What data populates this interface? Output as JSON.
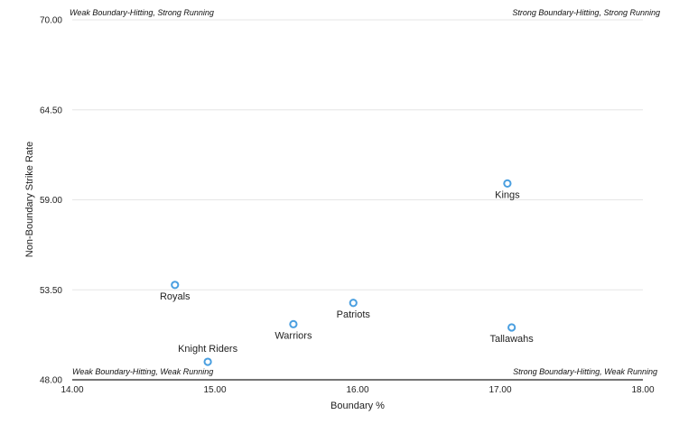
{
  "chart_data": {
    "type": "scatter",
    "title": "",
    "xlabel": "Boundary %",
    "ylabel": "Non-Boundary Strike Rate",
    "xlim": [
      14.0,
      18.0
    ],
    "ylim": [
      48.0,
      70.0
    ],
    "x_ticks": [
      "14.00",
      "15.00",
      "16.00",
      "17.00",
      "18.00"
    ],
    "y_ticks": [
      "48.00",
      "53.50",
      "59.00",
      "64.50",
      "70.00"
    ],
    "grid": true,
    "marker_color": "#4a9fe0",
    "quadrant_labels": {
      "top_left": "Weak Boundary-Hitting, Strong Running",
      "top_right": "Strong Boundary-Hitting, Strong Running",
      "bottom_left": "Weak Boundary-Hitting, Weak Running",
      "bottom_right": "Strong Boundary-Hitting, Weak Running"
    },
    "points": [
      {
        "label": "Kings",
        "x": 17.05,
        "y": 60.0,
        "label_position": "below"
      },
      {
        "label": "Royals",
        "x": 14.72,
        "y": 53.8,
        "label_position": "below"
      },
      {
        "label": "Patriots",
        "x": 15.97,
        "y": 52.7,
        "label_position": "below"
      },
      {
        "label": "Warriors",
        "x": 15.55,
        "y": 51.4,
        "label_position": "below"
      },
      {
        "label": "Tallawahs",
        "x": 17.08,
        "y": 51.2,
        "label_position": "below"
      },
      {
        "label": "Knight Riders",
        "x": 14.95,
        "y": 49.1,
        "label_position": "above"
      }
    ]
  }
}
